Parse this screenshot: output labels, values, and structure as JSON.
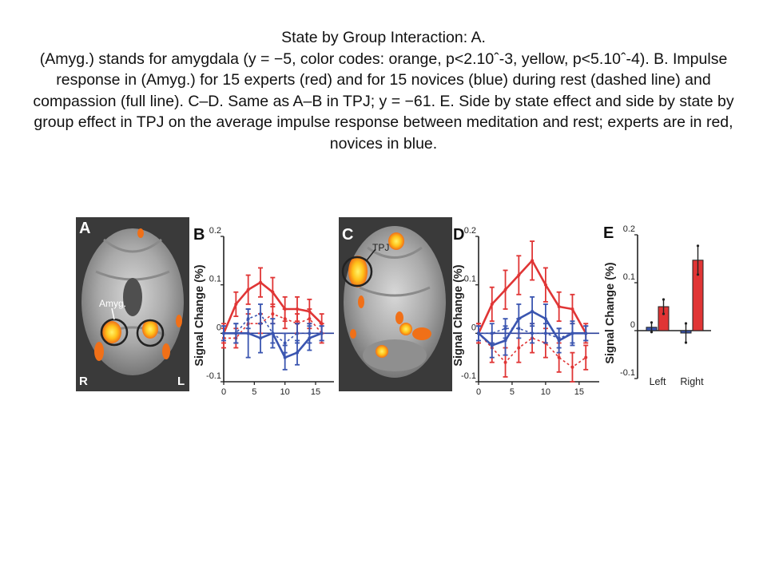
{
  "caption": {
    "line1": "State by Group Interaction: A.",
    "body": "(Amyg.) stands for amygdala (y = −5, color codes: orange, p<2.10ˆ-3, yellow, p<5.10ˆ-4). B. Impulse response in (Amyg.) for 15 experts (red) and for 15 novices (blue) during rest (dashed line) and compassion (full line). C–D. Same as A–B in TPJ; y = −61. E. Side by state effect and side by state by group effect in TPJ on the average impulse response between meditation and rest; experts are in red, novices in blue."
  },
  "panels": {
    "a": {
      "letter": "A",
      "roi_label": "Amyg.",
      "left_marker": "R",
      "right_marker": "L"
    },
    "b": {
      "letter": "B"
    },
    "c": {
      "letter": "C",
      "roi_label": "TPJ"
    },
    "d": {
      "letter": "D"
    },
    "e": {
      "letter": "E"
    }
  },
  "colors": {
    "experts": "#e03535",
    "novices": "#3a55b0",
    "axis": "#222222",
    "zero_line": "#2a3f9a"
  },
  "chart_data": [
    {
      "panel": "B",
      "type": "line",
      "ylabel": "Signal Change (%)",
      "xlim": [
        0,
        18
      ],
      "ylim": [
        -0.1,
        0.2
      ],
      "xticks": [
        0,
        5,
        10,
        15
      ],
      "yticks": [
        0.2,
        0.1,
        0,
        -0.1
      ],
      "ytick_labels": [
        "0.2",
        "0.1",
        "0",
        "-0.1"
      ],
      "x": [
        0,
        2,
        4,
        6,
        8,
        10,
        12,
        14,
        16
      ],
      "series": [
        {
          "group": "experts",
          "state": "compassion",
          "style": "solid",
          "values": [
            0.0,
            0.06,
            0.09,
            0.105,
            0.085,
            0.05,
            0.05,
            0.045,
            0.02
          ],
          "error": [
            0.02,
            0.025,
            0.03,
            0.03,
            0.03,
            0.025,
            0.025,
            0.025,
            0.02
          ]
        },
        {
          "group": "experts",
          "state": "rest",
          "style": "dashed",
          "values": [
            -0.01,
            -0.01,
            0.02,
            0.02,
            0.04,
            0.03,
            0.02,
            0.03,
            0.0
          ],
          "error": [
            0.02,
            0.02,
            0.02,
            0.02,
            0.02,
            0.02,
            0.02,
            0.02,
            0.02
          ]
        },
        {
          "group": "novices",
          "state": "compassion",
          "style": "solid",
          "values": [
            0.0,
            0.0,
            0.0,
            -0.01,
            0.0,
            -0.05,
            -0.04,
            -0.01,
            0.0
          ],
          "error": [
            0.015,
            0.02,
            0.05,
            0.03,
            0.03,
            0.025,
            0.025,
            0.025,
            0.015
          ]
        },
        {
          "group": "novices",
          "state": "rest",
          "style": "dashed",
          "values": [
            0.0,
            0.0,
            0.03,
            0.04,
            0.0,
            -0.02,
            0.0,
            0.0,
            0.0
          ],
          "error": [
            0.015,
            0.02,
            0.02,
            0.02,
            0.02,
            0.02,
            0.02,
            0.02,
            0.015
          ]
        }
      ]
    },
    {
      "panel": "D",
      "type": "line",
      "ylabel": "Signal Change (%)",
      "xlim": [
        0,
        18
      ],
      "ylim": [
        -0.1,
        0.2
      ],
      "xticks": [
        0,
        5,
        10,
        15
      ],
      "yticks": [
        0.2,
        0.1,
        0,
        -0.1
      ],
      "ytick_labels": [
        "0.2",
        "0.1",
        "0",
        "-0.1"
      ],
      "x": [
        0,
        2,
        4,
        6,
        8,
        10,
        12,
        14,
        16
      ],
      "series": [
        {
          "group": "experts",
          "state": "compassion",
          "style": "solid",
          "values": [
            0.0,
            0.06,
            0.09,
            0.12,
            0.15,
            0.1,
            0.055,
            0.05,
            0.0
          ],
          "error": [
            0.02,
            0.035,
            0.04,
            0.04,
            0.04,
            0.035,
            0.03,
            0.03,
            0.02
          ]
        },
        {
          "group": "experts",
          "state": "rest",
          "style": "dashed",
          "values": [
            0.0,
            -0.03,
            -0.06,
            -0.03,
            -0.01,
            -0.02,
            -0.05,
            -0.07,
            -0.05
          ],
          "error": [
            0.02,
            0.03,
            0.03,
            0.03,
            0.03,
            0.03,
            0.03,
            0.03,
            0.025
          ]
        },
        {
          "group": "novices",
          "state": "compassion",
          "style": "solid",
          "values": [
            0.0,
            -0.025,
            -0.015,
            0.03,
            0.045,
            0.03,
            -0.015,
            0.0,
            0.0
          ],
          "error": [
            0.015,
            0.025,
            0.03,
            0.03,
            0.03,
            0.03,
            0.025,
            0.025,
            0.015
          ]
        },
        {
          "group": "novices",
          "state": "rest",
          "style": "dashed",
          "values": [
            0.0,
            0.0,
            0.01,
            0.01,
            0.0,
            0.0,
            -0.01,
            0.0,
            0.0
          ],
          "error": [
            0.015,
            0.02,
            0.02,
            0.02,
            0.02,
            0.02,
            0.02,
            0.02,
            0.015
          ]
        }
      ]
    },
    {
      "panel": "E",
      "type": "bar",
      "ylabel": "Signal Change (%)",
      "ylim": [
        -0.1,
        0.2
      ],
      "yticks": [
        0.2,
        0.1,
        0,
        -0.1
      ],
      "ytick_labels": [
        "0.2",
        "0.1",
        "0",
        "-0.1"
      ],
      "categories": [
        "Left",
        "Right"
      ],
      "series": [
        {
          "group": "novices",
          "values": [
            0.007,
            -0.005
          ],
          "error": [
            0.01,
            0.02
          ]
        },
        {
          "group": "experts",
          "values": [
            0.05,
            0.147
          ],
          "error": [
            0.015,
            0.03
          ]
        }
      ]
    }
  ]
}
